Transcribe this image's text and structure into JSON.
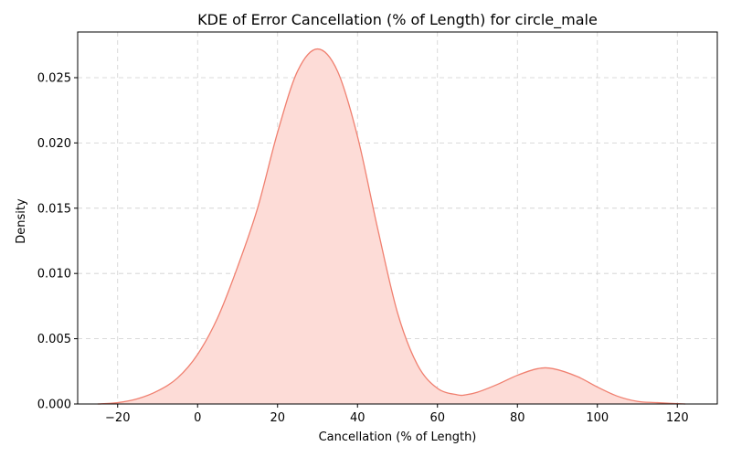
{
  "chart_data": {
    "type": "area",
    "title": "KDE of Error Cancellation (% of Length) for circle_male",
    "xlabel": "Cancellation (% of Length)",
    "ylabel": "Density",
    "xlim": [
      -30,
      130
    ],
    "ylim": [
      0,
      0.0285
    ],
    "x_ticks": [
      -20,
      0,
      20,
      40,
      60,
      80,
      100,
      120
    ],
    "y_ticks": [
      0.0,
      0.005,
      0.01,
      0.015,
      0.02,
      0.025
    ],
    "x_tick_labels": [
      "−20",
      "0",
      "20",
      "40",
      "60",
      "80",
      "100",
      "120"
    ],
    "y_tick_labels": [
      "0.000",
      "0.005",
      "0.010",
      "0.015",
      "0.020",
      "0.025"
    ],
    "grid": true,
    "series": [
      {
        "line_color": "#f08070",
        "fill_color": "#fddcd7",
        "x": [
          -25,
          -20,
          -15,
          -10,
          -5,
          0,
          5,
          10,
          15,
          20,
          25,
          30,
          35,
          40,
          45,
          50,
          55,
          60,
          65,
          67,
          70,
          75,
          80,
          85,
          89,
          95,
          100,
          105,
          110,
          115,
          122
        ],
        "y": [
          0.0,
          0.0001,
          0.0004,
          0.001,
          0.002,
          0.0038,
          0.0066,
          0.0105,
          0.015,
          0.0208,
          0.0255,
          0.0272,
          0.0255,
          0.0205,
          0.0135,
          0.007,
          0.003,
          0.0012,
          0.0007,
          0.0007,
          0.0009,
          0.0015,
          0.0022,
          0.0027,
          0.0027,
          0.0021,
          0.0013,
          0.0006,
          0.0002,
          0.0001,
          0.0
        ]
      }
    ]
  }
}
